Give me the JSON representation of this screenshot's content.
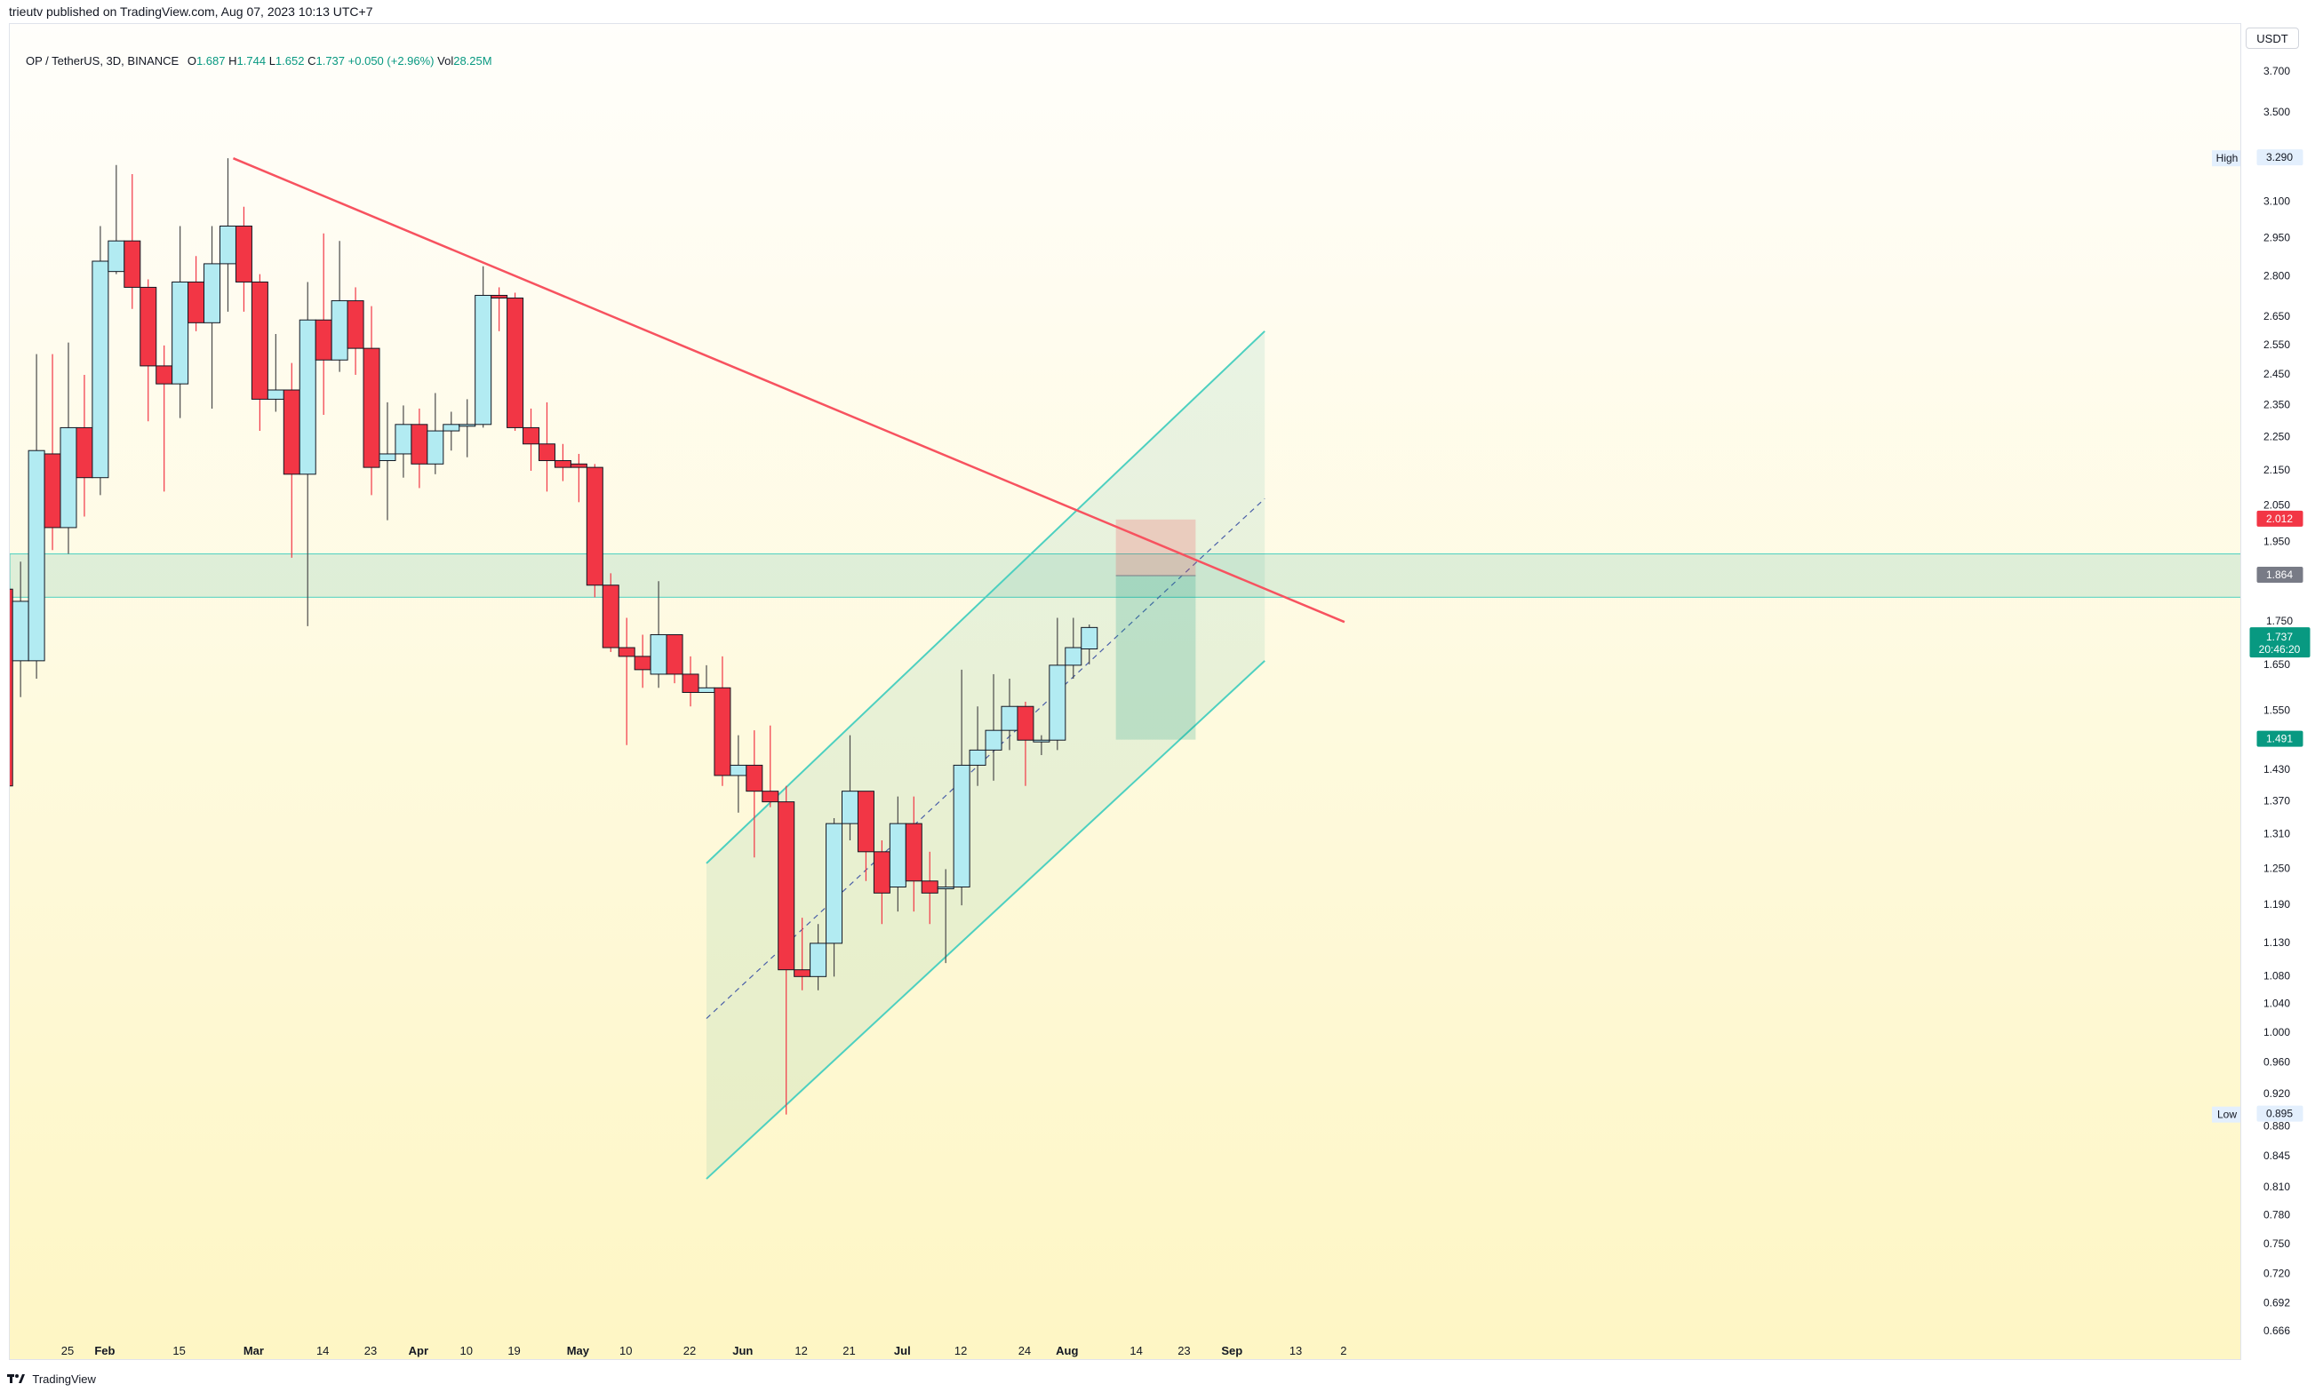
{
  "header": {
    "published_by": "trieutv published on TradingView.com, Aug 07, 2023 10:13 UTC+7"
  },
  "legend": {
    "symbol": "OP / TetherUS, 3D, BINANCE",
    "open_label": "O",
    "open": "1.687",
    "high_label": "H",
    "high": "1.744",
    "low_label": "L",
    "low": "1.652",
    "close_label": "C",
    "close": "1.737",
    "change": "+0.050 (+2.96%)",
    "vol_label": "Vol",
    "vol": "28.25M"
  },
  "currency_button": "USDT",
  "footer": {
    "brand": "TradingView"
  },
  "colors": {
    "up_fill": "#b2ebf2",
    "down_fill": "#f23645",
    "candle_border": "#131722",
    "trendline": "#f7525f",
    "channel": "#4dd0c0",
    "accent_green": "#089981",
    "bg_top": "#fffefb",
    "bg_bottom": "#fef6c4"
  },
  "chart_data": {
    "type": "candlestick",
    "symbol": "OP / TetherUS",
    "interval": "3D",
    "exchange": "BINANCE",
    "y_scale": "log",
    "ylim": [
      0.64,
      3.95
    ],
    "x_ticks": [
      {
        "day": 0,
        "label": "25"
      },
      {
        "day": 7,
        "label": "Feb"
      },
      {
        "day": 21,
        "label": "15"
      },
      {
        "day": 35,
        "label": "Mar"
      },
      {
        "day": 48,
        "label": "14"
      },
      {
        "day": 57,
        "label": "23"
      },
      {
        "day": 66,
        "label": "Apr"
      },
      {
        "day": 75,
        "label": "10"
      },
      {
        "day": 84,
        "label": "19"
      },
      {
        "day": 96,
        "label": "May"
      },
      {
        "day": 105,
        "label": "10"
      },
      {
        "day": 117,
        "label": "22"
      },
      {
        "day": 127,
        "label": "Jun"
      },
      {
        "day": 138,
        "label": "12"
      },
      {
        "day": 147,
        "label": "21"
      },
      {
        "day": 157,
        "label": "Jul"
      },
      {
        "day": 168,
        "label": "12"
      },
      {
        "day": 180,
        "label": "24"
      },
      {
        "day": 188,
        "label": "Aug"
      },
      {
        "day": 201,
        "label": "14"
      },
      {
        "day": 210,
        "label": "23"
      },
      {
        "day": 219,
        "label": "Sep"
      },
      {
        "day": 231,
        "label": "13"
      },
      {
        "day": 240,
        "label": "2"
      }
    ],
    "y_ticks": [
      3.7,
      3.5,
      3.1,
      2.95,
      2.8,
      2.65,
      2.55,
      2.45,
      2.35,
      2.25,
      2.15,
      2.05,
      1.95,
      1.65,
      1.55,
      1.43,
      1.37,
      1.31,
      1.25,
      1.19,
      1.13,
      1.08,
      1.04,
      1.0,
      0.96,
      0.92,
      0.88,
      0.845,
      0.81,
      0.78,
      0.75,
      0.72,
      0.692,
      0.666
    ],
    "y_tick_labels": [
      "3.700",
      "3.500",
      "3.100",
      "2.950",
      "2.800",
      "2.650",
      "2.550",
      "2.450",
      "2.350",
      "2.250",
      "2.150",
      "2.050",
      "1.950",
      "1.650",
      "1.550",
      "1.430",
      "1.370",
      "1.310",
      "1.250",
      "1.190",
      "1.130",
      "1.080",
      "1.040",
      "1.000",
      "0.960",
      "0.920",
      "0.880",
      "0.845",
      "0.810",
      "0.780",
      "0.750",
      "0.720",
      "0.692",
      "0.666"
    ],
    "candles": [
      {
        "day": -12,
        "open": 1.83,
        "high": 1.89,
        "low": 1.38,
        "close": 1.4
      },
      {
        "day": -9,
        "open": 1.66,
        "high": 1.9,
        "low": 1.58,
        "close": 1.8
      },
      {
        "day": -6,
        "open": 1.66,
        "high": 2.52,
        "low": 1.62,
        "close": 2.21
      },
      {
        "day": -3,
        "open": 2.2,
        "high": 2.52,
        "low": 1.93,
        "close": 1.99
      },
      {
        "day": 0,
        "open": 1.99,
        "high": 2.56,
        "low": 1.92,
        "close": 2.28
      },
      {
        "day": 3,
        "open": 2.28,
        "high": 2.45,
        "low": 2.02,
        "close": 2.13
      },
      {
        "day": 6,
        "open": 2.13,
        "high": 3.0,
        "low": 2.08,
        "close": 2.86
      },
      {
        "day": 9,
        "open": 2.82,
        "high": 3.26,
        "low": 2.81,
        "close": 2.94
      },
      {
        "day": 12,
        "open": 2.94,
        "high": 3.22,
        "low": 2.68,
        "close": 2.76
      },
      {
        "day": 15,
        "open": 2.76,
        "high": 2.79,
        "low": 2.3,
        "close": 2.48
      },
      {
        "day": 18,
        "open": 2.48,
        "high": 2.55,
        "low": 2.09,
        "close": 2.42
      },
      {
        "day": 21,
        "open": 2.42,
        "high": 3.0,
        "low": 2.31,
        "close": 2.78
      },
      {
        "day": 24,
        "open": 2.78,
        "high": 2.88,
        "low": 2.6,
        "close": 2.63
      },
      {
        "day": 27,
        "open": 2.63,
        "high": 3.0,
        "low": 2.34,
        "close": 2.85
      },
      {
        "day": 30,
        "open": 2.85,
        "high": 3.29,
        "low": 2.67,
        "close": 3.0
      },
      {
        "day": 33,
        "open": 3.0,
        "high": 3.08,
        "low": 2.67,
        "close": 2.78
      },
      {
        "day": 36,
        "open": 2.78,
        "high": 2.81,
        "low": 2.27,
        "close": 2.37
      },
      {
        "day": 39,
        "open": 2.37,
        "high": 2.59,
        "low": 2.33,
        "close": 2.4
      },
      {
        "day": 42,
        "open": 2.4,
        "high": 2.49,
        "low": 1.91,
        "close": 2.14
      },
      {
        "day": 45,
        "open": 2.14,
        "high": 2.78,
        "low": 1.74,
        "close": 2.64
      },
      {
        "day": 48,
        "open": 2.64,
        "high": 2.97,
        "low": 2.32,
        "close": 2.5
      },
      {
        "day": 51,
        "open": 2.5,
        "high": 2.94,
        "low": 2.46,
        "close": 2.71
      },
      {
        "day": 54,
        "open": 2.71,
        "high": 2.76,
        "low": 2.45,
        "close": 2.54
      },
      {
        "day": 57,
        "open": 2.54,
        "high": 2.69,
        "low": 2.08,
        "close": 2.16
      },
      {
        "day": 60,
        "open": 2.18,
        "high": 2.36,
        "low": 2.01,
        "close": 2.2
      },
      {
        "day": 63,
        "open": 2.2,
        "high": 2.35,
        "low": 2.13,
        "close": 2.29
      },
      {
        "day": 66,
        "open": 2.29,
        "high": 2.34,
        "low": 2.1,
        "close": 2.17
      },
      {
        "day": 69,
        "open": 2.17,
        "high": 2.39,
        "low": 2.14,
        "close": 2.27
      },
      {
        "day": 72,
        "open": 2.27,
        "high": 2.33,
        "low": 2.21,
        "close": 2.29
      },
      {
        "day": 75,
        "open": 2.29,
        "high": 2.37,
        "low": 2.19,
        "close": 2.29
      },
      {
        "day": 78,
        "open": 2.29,
        "high": 2.84,
        "low": 2.28,
        "close": 2.73
      },
      {
        "day": 81,
        "open": 2.73,
        "high": 2.76,
        "low": 2.6,
        "close": 2.72
      },
      {
        "day": 84,
        "open": 2.72,
        "high": 2.74,
        "low": 2.27,
        "close": 2.28
      },
      {
        "day": 87,
        "open": 2.28,
        "high": 2.34,
        "low": 2.15,
        "close": 2.23
      },
      {
        "day": 90,
        "open": 2.23,
        "high": 2.36,
        "low": 2.09,
        "close": 2.18
      },
      {
        "day": 93,
        "open": 2.18,
        "high": 2.23,
        "low": 2.12,
        "close": 2.16
      },
      {
        "day": 96,
        "open": 2.17,
        "high": 2.2,
        "low": 2.06,
        "close": 2.16
      },
      {
        "day": 99,
        "open": 2.16,
        "high": 2.17,
        "low": 1.81,
        "close": 1.84
      },
      {
        "day": 102,
        "open": 1.84,
        "high": 1.87,
        "low": 1.68,
        "close": 1.69
      },
      {
        "day": 105,
        "open": 1.69,
        "high": 1.76,
        "low": 1.48,
        "close": 1.67
      },
      {
        "day": 108,
        "open": 1.67,
        "high": 1.72,
        "low": 1.6,
        "close": 1.64
      },
      {
        "day": 111,
        "open": 1.63,
        "high": 1.85,
        "low": 1.6,
        "close": 1.72
      },
      {
        "day": 114,
        "open": 1.72,
        "high": 1.72,
        "low": 1.61,
        "close": 1.63
      },
      {
        "day": 117,
        "open": 1.63,
        "high": 1.67,
        "low": 1.56,
        "close": 1.59
      },
      {
        "day": 120,
        "open": 1.59,
        "high": 1.65,
        "low": 1.59,
        "close": 1.6
      },
      {
        "day": 123,
        "open": 1.6,
        "high": 1.67,
        "low": 1.4,
        "close": 1.42
      },
      {
        "day": 126,
        "open": 1.42,
        "high": 1.5,
        "low": 1.35,
        "close": 1.44
      },
      {
        "day": 129,
        "open": 1.44,
        "high": 1.51,
        "low": 1.27,
        "close": 1.39
      },
      {
        "day": 132,
        "open": 1.39,
        "high": 1.52,
        "low": 1.36,
        "close": 1.37
      },
      {
        "day": 135,
        "open": 1.37,
        "high": 1.4,
        "low": 0.895,
        "close": 1.09
      },
      {
        "day": 138,
        "open": 1.09,
        "high": 1.17,
        "low": 1.06,
        "close": 1.08
      },
      {
        "day": 141,
        "open": 1.08,
        "high": 1.16,
        "low": 1.06,
        "close": 1.13
      },
      {
        "day": 144,
        "open": 1.13,
        "high": 1.34,
        "low": 1.08,
        "close": 1.33
      },
      {
        "day": 147,
        "open": 1.33,
        "high": 1.5,
        "low": 1.3,
        "close": 1.39
      },
      {
        "day": 150,
        "open": 1.39,
        "high": 1.39,
        "low": 1.23,
        "close": 1.28
      },
      {
        "day": 153,
        "open": 1.28,
        "high": 1.3,
        "low": 1.16,
        "close": 1.21
      },
      {
        "day": 156,
        "open": 1.22,
        "high": 1.38,
        "low": 1.18,
        "close": 1.33
      },
      {
        "day": 159,
        "open": 1.33,
        "high": 1.38,
        "low": 1.18,
        "close": 1.23
      },
      {
        "day": 162,
        "open": 1.23,
        "high": 1.28,
        "low": 1.16,
        "close": 1.21
      },
      {
        "day": 165,
        "open": 1.22,
        "high": 1.25,
        "low": 1.1,
        "close": 1.22
      },
      {
        "day": 168,
        "open": 1.22,
        "high": 1.64,
        "low": 1.19,
        "close": 1.44
      },
      {
        "day": 171,
        "open": 1.44,
        "high": 1.56,
        "low": 1.4,
        "close": 1.47
      },
      {
        "day": 174,
        "open": 1.47,
        "high": 1.63,
        "low": 1.41,
        "close": 1.51
      },
      {
        "day": 177,
        "open": 1.51,
        "high": 1.62,
        "low": 1.47,
        "close": 1.56
      },
      {
        "day": 180,
        "open": 1.56,
        "high": 1.57,
        "low": 1.4,
        "close": 1.49
      },
      {
        "day": 183,
        "open": 1.49,
        "high": 1.5,
        "low": 1.46,
        "close": 1.49
      },
      {
        "day": 186,
        "open": 1.49,
        "high": 1.76,
        "low": 1.47,
        "close": 1.65
      },
      {
        "day": 189,
        "open": 1.65,
        "high": 1.76,
        "low": 1.62,
        "close": 1.69
      },
      {
        "day": 192,
        "open": 1.687,
        "high": 1.744,
        "low": 1.652,
        "close": 1.737
      }
    ],
    "price_labels": {
      "high_label": "High",
      "high": "3.290",
      "low_label": "Low",
      "low": "0.895",
      "stop": "2.012",
      "entry": "1.864",
      "current": "1.737",
      "countdown": "20:46:20",
      "target": "1.491",
      "partial_tick": "1.750"
    },
    "drawings": {
      "descending_trendline": {
        "from": {
          "day": 31,
          "price": 3.29
        },
        "to": {
          "day": 240,
          "price": 1.75
        }
      },
      "support_zone": {
        "top": 1.92,
        "bottom": 1.81
      },
      "channel": {
        "lower_from": {
          "day": 120,
          "price": 0.82
        },
        "lower_to": {
          "day": 225,
          "price": 1.66
        },
        "upper_from": {
          "day": 120,
          "price": 1.26
        },
        "upper_to": {
          "day": 225,
          "price": 2.6
        },
        "mid_from": {
          "day": 120,
          "price": 1.02
        },
        "mid_to": {
          "day": 225,
          "price": 2.07
        }
      },
      "short_position": {
        "from_day": 197,
        "to_day": 212,
        "entry": 1.864,
        "stop": 2.012,
        "target": 1.491
      }
    }
  }
}
